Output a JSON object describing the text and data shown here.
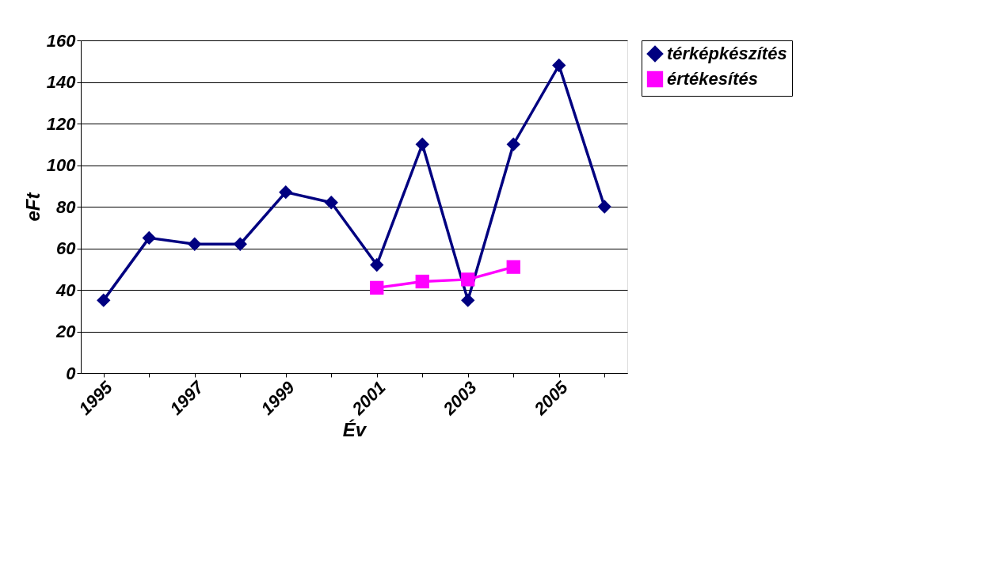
{
  "chart_data": {
    "type": "line",
    "xlabel": "Év",
    "ylabel": "eFt",
    "categories": [
      "1995",
      null,
      "1997",
      null,
      "1999",
      null,
      "2001",
      null,
      "2003",
      null,
      "2005",
      null
    ],
    "series": [
      {
        "name": "térképkészítés",
        "color": "#000080",
        "marker": "diamond",
        "values": [
          35,
          65,
          62,
          62,
          87,
          82,
          52,
          110,
          35,
          110,
          148,
          80
        ]
      },
      {
        "name": "értékesítés",
        "color": "#ff00ff",
        "marker": "square",
        "values": [
          null,
          null,
          null,
          null,
          null,
          null,
          41,
          44,
          45,
          51,
          null,
          null
        ]
      }
    ],
    "ylim": [
      0,
      160
    ],
    "yticks": [
      0,
      20,
      40,
      60,
      80,
      100,
      120,
      140,
      160
    ],
    "grid": "y",
    "legend": "right",
    "line_style": "solid"
  }
}
